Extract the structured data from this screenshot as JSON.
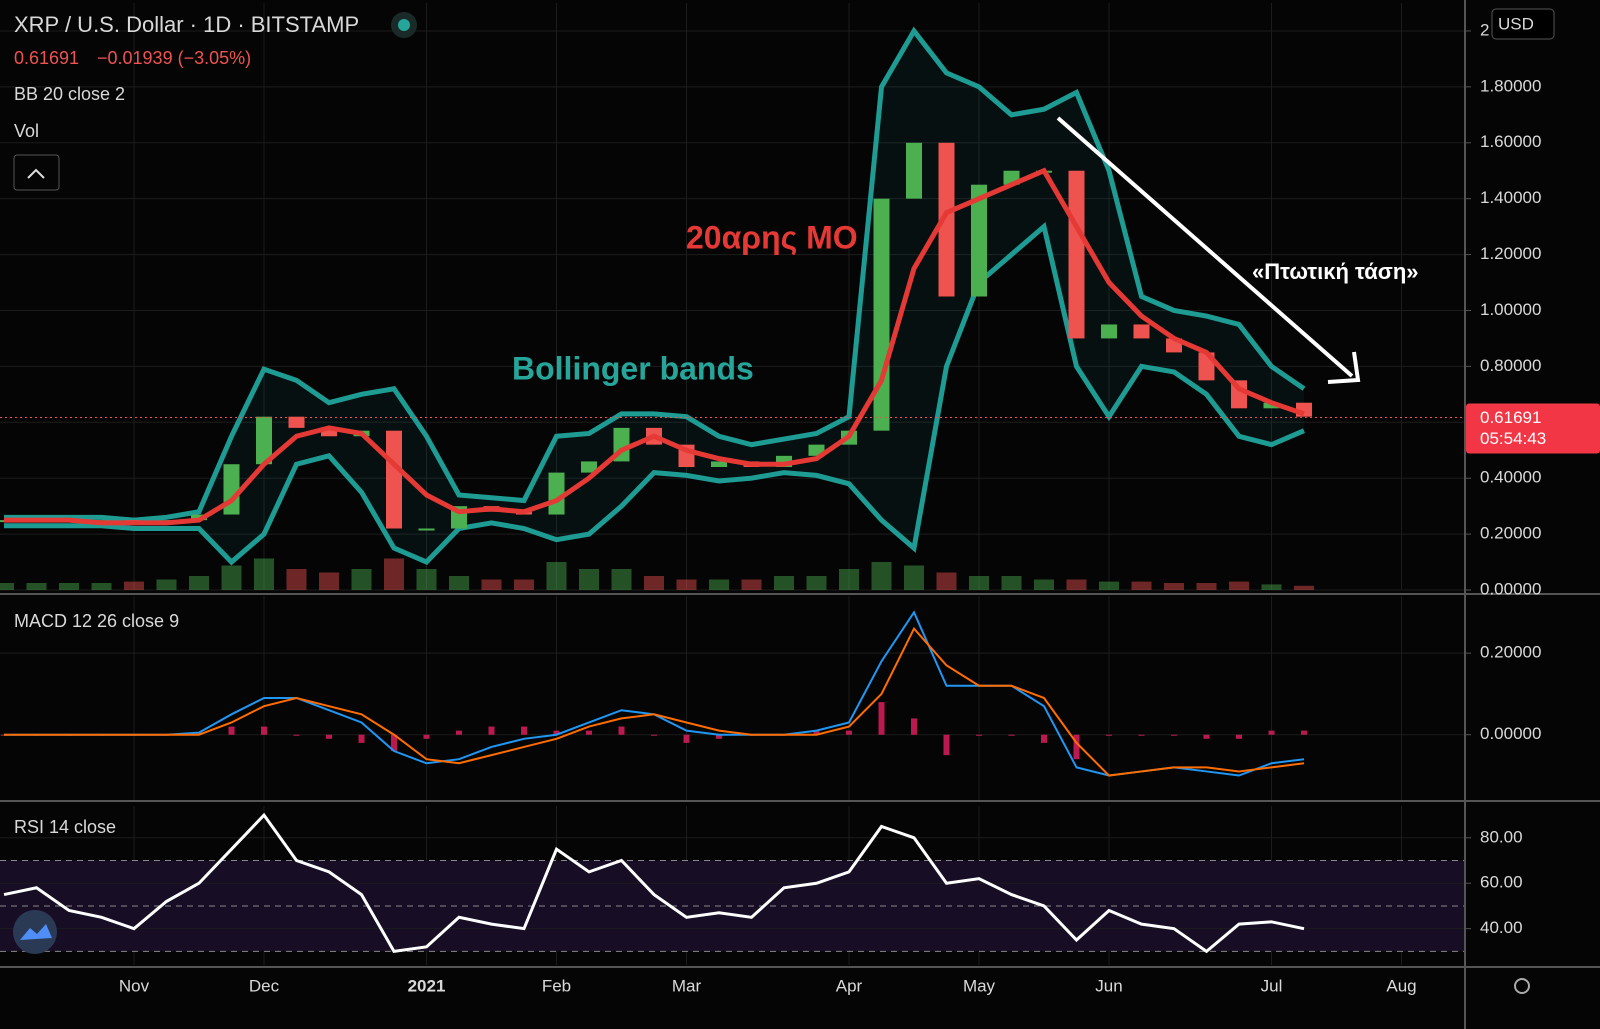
{
  "chart_data": [
    {
      "type": "candlestick",
      "title": "XRP / U.S. Dollar · 1D · BITSTAMP",
      "last_price": 0.61691,
      "last_change": "−0.01939 (−3.05%)",
      "countdown": "05:54:43",
      "currency": "USD",
      "indicators": [
        "BB 20 close 2",
        "Vol"
      ],
      "annotations": [
        "20αρης ΜΟ",
        "Bollinger bands",
        "«Πτωτική τάση»"
      ],
      "categories": [
        null,
        null,
        null,
        null,
        "Nov",
        null,
        null,
        null,
        "Dec",
        null,
        null,
        null,
        null,
        "2021",
        null,
        null,
        null,
        "Feb",
        null,
        null,
        null,
        "Mar",
        null,
        null,
        null,
        null,
        "Apr",
        null,
        null,
        null,
        "May",
        null,
        null,
        null,
        "Jun",
        null,
        null,
        null,
        null,
        "Jul",
        null,
        null,
        null,
        "Aug",
        null
      ],
      "values": [
        0.25,
        0.25,
        0.25,
        0.25,
        0.24,
        0.25,
        0.27,
        0.45,
        0.62,
        0.58,
        0.55,
        0.57,
        0.22,
        0.22,
        0.3,
        0.28,
        0.27,
        0.42,
        0.46,
        0.58,
        0.52,
        0.44,
        0.46,
        0.44,
        0.48,
        0.52,
        0.57,
        1.4,
        1.6,
        1.05,
        1.45,
        1.5,
        1.5,
        0.9,
        0.95,
        0.9,
        0.85,
        0.75,
        0.65,
        0.67,
        0.62,
        null,
        null,
        null,
        null
      ],
      "up_color": "#4caf50",
      "down_color": "#ef5350",
      "bands": {
        "upper": [
          0.26,
          0.26,
          0.26,
          0.26,
          0.25,
          0.26,
          0.28,
          0.55,
          0.79,
          0.75,
          0.67,
          0.7,
          0.72,
          0.55,
          0.34,
          0.33,
          0.32,
          0.55,
          0.56,
          0.63,
          0.63,
          0.62,
          0.55,
          0.52,
          0.54,
          0.56,
          0.62,
          1.8,
          2.0,
          1.85,
          1.8,
          1.7,
          1.72,
          1.78,
          1.5,
          1.05,
          1.0,
          0.98,
          0.95,
          0.8,
          0.72,
          null,
          null,
          null,
          null
        ],
        "basis": [
          0.25,
          0.25,
          0.25,
          0.24,
          0.24,
          0.24,
          0.25,
          0.32,
          0.45,
          0.55,
          0.58,
          0.56,
          0.45,
          0.34,
          0.28,
          0.29,
          0.28,
          0.32,
          0.4,
          0.5,
          0.55,
          0.5,
          0.47,
          0.45,
          0.45,
          0.47,
          0.55,
          0.75,
          1.15,
          1.35,
          1.4,
          1.45,
          1.5,
          1.3,
          1.1,
          0.98,
          0.9,
          0.85,
          0.72,
          0.67,
          0.63,
          null,
          null,
          null,
          null
        ],
        "lower": [
          0.23,
          0.23,
          0.23,
          0.23,
          0.22,
          0.22,
          0.22,
          0.1,
          0.2,
          0.45,
          0.48,
          0.35,
          0.15,
          0.1,
          0.22,
          0.24,
          0.22,
          0.18,
          0.2,
          0.3,
          0.42,
          0.41,
          0.39,
          0.4,
          0.42,
          0.41,
          0.38,
          0.25,
          0.15,
          0.8,
          1.1,
          1.2,
          1.3,
          0.8,
          0.62,
          0.8,
          0.78,
          0.7,
          0.55,
          0.52,
          0.57,
          null,
          null,
          null,
          null
        ],
        "band_color": "#1e9c94",
        "basis_color": "#e53935"
      },
      "volume": [
        10,
        10,
        10,
        10,
        12,
        15,
        20,
        35,
        45,
        30,
        25,
        30,
        45,
        30,
        20,
        15,
        15,
        40,
        30,
        30,
        20,
        15,
        15,
        15,
        20,
        20,
        30,
        40,
        35,
        25,
        20,
        20,
        15,
        15,
        12,
        12,
        10,
        10,
        12,
        8,
        6,
        null,
        null,
        null,
        null
      ],
      "vlim": [
        0,
        100
      ],
      "ylim": [
        0,
        2.1
      ],
      "yticks": [
        {
          "value": 0,
          "label": "0.00000"
        },
        {
          "value": 0.2,
          "label": "0.20000"
        },
        {
          "value": 0.4,
          "label": "0.40000"
        },
        {
          "value": 0.6,
          "label": "0.60000"
        },
        {
          "value": 0.8,
          "label": "0.80000"
        },
        {
          "value": 1,
          "label": "1.00000"
        },
        {
          "value": 1.2,
          "label": "1.20000"
        },
        {
          "value": 1.4,
          "label": "1.40000"
        },
        {
          "value": 1.6,
          "label": "1.60000"
        },
        {
          "value": 1.8,
          "label": "1.80000"
        },
        2
      ]
    },
    {
      "type": "macd",
      "title": "MACD 12 26 close 9",
      "series": [
        {
          "color": "#2196f3",
          "values": [
            0,
            0,
            0,
            0,
            0,
            0,
            0.005,
            0.05,
            0.09,
            0.09,
            0.06,
            0.03,
            -0.04,
            -0.07,
            -0.06,
            -0.03,
            -0.01,
            0,
            0.03,
            0.06,
            0.05,
            0.01,
            0,
            0,
            0,
            0.01,
            0.03,
            0.18,
            0.3,
            0.12,
            0.12,
            0.12,
            0.07,
            -0.08,
            -0.1,
            -0.09,
            -0.08,
            -0.09,
            -0.1,
            -0.07,
            -0.06,
            null,
            null,
            null,
            null
          ]
        },
        {
          "color": "#ff6d00",
          "values": [
            0,
            0,
            0,
            0,
            0,
            0,
            0,
            0.03,
            0.07,
            0.09,
            0.07,
            0.05,
            0,
            -0.06,
            -0.07,
            -0.05,
            -0.03,
            -0.01,
            0.02,
            0.04,
            0.05,
            0.03,
            0.01,
            0,
            0,
            0,
            0.02,
            0.1,
            0.26,
            0.17,
            0.12,
            0.12,
            0.09,
            -0.02,
            -0.1,
            -0.09,
            -0.08,
            -0.08,
            -0.09,
            -0.08,
            -0.07,
            null,
            null,
            null,
            null
          ]
        }
      ],
      "histogram": {
        "color": "#e91e63",
        "values": [
          0,
          0,
          0,
          0,
          0,
          0,
          0.005,
          0.02,
          0.02,
          0,
          -0.01,
          -0.02,
          -0.04,
          -0.01,
          0.01,
          0.02,
          0.02,
          0.01,
          0.01,
          0.02,
          0,
          -0.02,
          -0.01,
          0,
          0,
          0.01,
          0.01,
          0.08,
          0.04,
          -0.05,
          0,
          0,
          -0.02,
          -0.06,
          0,
          0,
          0,
          -0.01,
          -0.01,
          0.01,
          0.01,
          null,
          null,
          null,
          null
        ]
      },
      "ylim": [
        -0.16,
        0.34
      ],
      "yticks": [
        {
          "value": 0,
          "label": "0.00000"
        },
        {
          "value": 0.2,
          "label": "0.20000"
        }
      ]
    },
    {
      "type": "rsi",
      "title": "RSI 14 close",
      "color": "#ffffff",
      "values": [
        55,
        58,
        48,
        45,
        40,
        52,
        60,
        75,
        90,
        70,
        65,
        55,
        30,
        32,
        45,
        42,
        40,
        75,
        65,
        70,
        55,
        45,
        47,
        45,
        58,
        60,
        65,
        85,
        80,
        60,
        62,
        55,
        50,
        35,
        48,
        42,
        40,
        30,
        42,
        43,
        40,
        null,
        null,
        null,
        null
      ],
      "levels": [
        30,
        50,
        70
      ],
      "ylim": [
        24,
        94
      ],
      "yticks": [
        {
          "value": 40,
          "label": "40.00"
        },
        {
          "value": 60,
          "label": "60.00"
        },
        {
          "value": 80,
          "label": "80.00"
        }
      ]
    }
  ]
}
